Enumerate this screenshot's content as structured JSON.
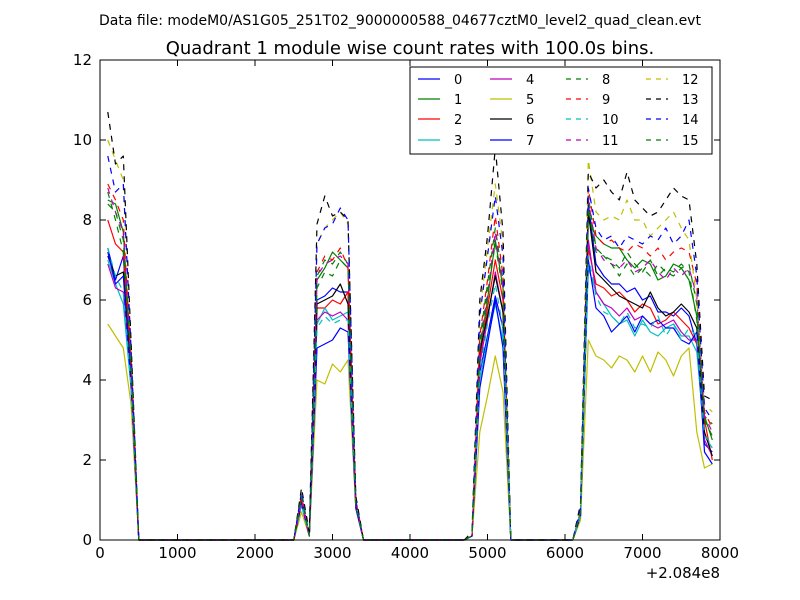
{
  "figure": {
    "suptitle": "Data file: modeM0/AS1G05_251T02_9000000588_04677cztM0_level2_quad_clean.evt"
  },
  "chart_data": {
    "type": "line",
    "title": "Quadrant 1 module wise count rates with 100.0s bins.",
    "xlabel": "",
    "ylabel": "",
    "xlim": [
      0,
      8000
    ],
    "ylim": [
      0,
      12
    ],
    "x_offset_label": "+2.084e8",
    "x_tick_labels": [
      "0",
      "1000",
      "2000",
      "3000",
      "4000",
      "5000",
      "6000",
      "7000",
      "8000"
    ],
    "y_tick_labels": [
      "0",
      "2",
      "4",
      "6",
      "8",
      "10",
      "12"
    ],
    "grid": false,
    "legend": {
      "placement": "top-right",
      "columns": 4
    },
    "x": [
      100,
      200,
      300,
      400,
      500,
      2500,
      2600,
      2700,
      2800,
      2900,
      3000,
      3100,
      3200,
      3300,
      3400,
      4700,
      4800,
      4900,
      5000,
      5100,
      5200,
      5300,
      6100,
      6200,
      6300,
      6400,
      6500,
      6600,
      6700,
      6800,
      6900,
      7000,
      7100,
      7200,
      7300,
      7400,
      7500,
      7600,
      7700,
      7800,
      7900
    ],
    "series": [
      {
        "name": "0",
        "color": "#0000ff",
        "dash": "solid",
        "values": [
          7.3,
          6.5,
          7.1,
          4.0,
          0,
          0,
          1.1,
          0.1,
          6.0,
          6.1,
          6.3,
          6.2,
          6.2,
          0.9,
          0,
          0,
          0.1,
          4.2,
          5.1,
          6.1,
          5.3,
          0,
          0,
          0.7,
          8.4,
          6.9,
          6.6,
          6.4,
          6.4,
          6.2,
          6.3,
          6.0,
          6.1,
          5.7,
          5.7,
          5.6,
          5.8,
          5.6,
          4.9,
          2.4,
          2.2
        ]
      },
      {
        "name": "1",
        "color": "#008000",
        "dash": "solid",
        "values": [
          8.5,
          8.4,
          7.7,
          4.5,
          0,
          0,
          1.0,
          0.1,
          6.5,
          6.8,
          7.2,
          7.0,
          6.8,
          0.9,
          0,
          0,
          0.1,
          4.7,
          6.0,
          7.5,
          6.3,
          0,
          0,
          0.7,
          8.0,
          7.6,
          7.4,
          7.3,
          7.3,
          7.0,
          6.8,
          7.0,
          6.9,
          6.5,
          6.6,
          6.9,
          6.8,
          6.5,
          5.6,
          3.1,
          2.5
        ]
      },
      {
        "name": "2",
        "color": "#ff0000",
        "dash": "solid",
        "values": [
          8.0,
          7.4,
          7.2,
          4.3,
          0,
          0,
          1.0,
          0.1,
          5.8,
          5.8,
          6.0,
          5.9,
          6.2,
          0.9,
          0,
          0,
          0.1,
          4.5,
          5.8,
          7.0,
          6.0,
          0,
          0,
          0.7,
          7.3,
          6.4,
          6.3,
          6.1,
          6.2,
          6.0,
          5.7,
          5.9,
          5.8,
          5.4,
          5.5,
          5.7,
          5.5,
          5.3,
          4.9,
          3.0,
          2.0
        ]
      },
      {
        "name": "3",
        "color": "#00bfbf",
        "dash": "solid",
        "values": [
          7.0,
          6.4,
          5.9,
          3.8,
          0,
          0,
          0.9,
          0.1,
          5.4,
          5.8,
          5.5,
          5.6,
          5.7,
          0.9,
          0,
          0,
          0.1,
          4.0,
          5.0,
          5.9,
          5.0,
          0,
          0,
          0.7,
          6.8,
          6.2,
          5.9,
          5.6,
          5.4,
          5.5,
          5.1,
          5.5,
          5.2,
          5.1,
          5.3,
          5.4,
          5.1,
          5.1,
          4.7,
          2.6,
          2.3
        ]
      },
      {
        "name": "4",
        "color": "#bf00bf",
        "dash": "solid",
        "values": [
          6.9,
          6.3,
          6.2,
          4.0,
          0,
          0,
          0.9,
          0.1,
          5.5,
          5.7,
          5.6,
          5.7,
          5.5,
          0.8,
          0,
          0,
          0.1,
          4.4,
          5.5,
          6.7,
          5.7,
          0,
          0,
          0.6,
          7.5,
          6.2,
          5.9,
          5.8,
          5.6,
          5.8,
          5.5,
          5.6,
          5.4,
          5.3,
          5.4,
          5.5,
          5.2,
          5.0,
          5.0,
          2.5,
          2.1
        ]
      },
      {
        "name": "5",
        "color": "#bfbf00",
        "dash": "solid",
        "values": [
          5.4,
          5.1,
          4.8,
          3.4,
          0,
          0,
          0.7,
          0.1,
          4.0,
          3.9,
          4.4,
          4.2,
          4.5,
          0.8,
          0,
          0,
          0.1,
          2.7,
          3.6,
          4.6,
          3.7,
          0,
          0,
          0.5,
          5.0,
          4.6,
          4.5,
          4.3,
          4.6,
          4.5,
          4.2,
          4.6,
          4.2,
          4.7,
          4.5,
          4.1,
          4.6,
          4.8,
          2.7,
          1.8,
          1.9
        ]
      },
      {
        "name": "6",
        "color": "#000000",
        "dash": "solid",
        "values": [
          7.1,
          6.6,
          6.7,
          4.1,
          0,
          0,
          1.0,
          0.1,
          5.9,
          6.0,
          6.1,
          6.4,
          5.9,
          0.9,
          0,
          0,
          0.1,
          4.7,
          5.6,
          6.6,
          5.7,
          0,
          0,
          0.6,
          8.2,
          6.7,
          6.5,
          6.3,
          6.1,
          6.0,
          5.9,
          5.8,
          6.2,
          5.8,
          5.6,
          5.7,
          5.9,
          5.7,
          5.3,
          2.7,
          2.1
        ]
      },
      {
        "name": "7",
        "color": "#0000ff",
        "dash": "solid",
        "values": [
          7.2,
          6.4,
          6.6,
          3.9,
          0,
          0,
          0.9,
          0.1,
          4.8,
          4.9,
          5.0,
          5.3,
          5.2,
          0.8,
          0,
          0,
          0.1,
          3.8,
          4.9,
          6.0,
          4.8,
          0,
          0,
          0.6,
          7.0,
          5.8,
          5.6,
          5.2,
          5.4,
          5.6,
          5.2,
          5.6,
          5.4,
          5.5,
          5.3,
          5.3,
          5.0,
          4.9,
          5.2,
          2.2,
          1.9
        ]
      },
      {
        "name": "8",
        "color": "#008000",
        "dash": "dashed",
        "values": [
          8.7,
          8.0,
          7.2,
          4.6,
          0,
          0,
          1.1,
          0.1,
          6.6,
          7.0,
          6.9,
          7.2,
          6.9,
          1.0,
          0,
          0,
          0.1,
          5.0,
          6.4,
          7.8,
          6.5,
          0,
          0,
          0.7,
          8.6,
          7.3,
          7.1,
          7.0,
          6.8,
          7.2,
          6.9,
          6.7,
          7.0,
          6.6,
          6.8,
          6.7,
          6.9,
          6.7,
          5.5,
          3.1,
          2.9
        ]
      },
      {
        "name": "9",
        "color": "#ff0000",
        "dash": "dashed",
        "values": [
          8.9,
          8.5,
          8.0,
          4.4,
          0,
          0,
          1.1,
          0.1,
          6.7,
          7.1,
          7.0,
          7.3,
          6.8,
          1.0,
          0,
          0,
          0.1,
          5.1,
          6.5,
          8.1,
          6.6,
          0,
          0,
          0.7,
          8.8,
          7.6,
          7.4,
          7.5,
          7.3,
          7.2,
          7.4,
          7.3,
          7.1,
          7.3,
          7.0,
          7.2,
          7.3,
          7.2,
          6.4,
          3.2,
          2.8
        ]
      },
      {
        "name": "10",
        "color": "#00bfbf",
        "dash": "dashed",
        "values": [
          7.3,
          6.6,
          6.2,
          3.9,
          0,
          0,
          0.9,
          0.1,
          5.3,
          5.6,
          5.4,
          5.5,
          5.5,
          0.9,
          0,
          0,
          0.1,
          4.2,
          5.4,
          6.4,
          5.3,
          0,
          0,
          0.6,
          7.1,
          6.1,
          5.7,
          5.6,
          5.4,
          5.7,
          5.3,
          5.4,
          5.3,
          5.6,
          5.1,
          5.4,
          5.0,
          5.3,
          5.1,
          2.6,
          2.4
        ]
      },
      {
        "name": "11",
        "color": "#bf00bf",
        "dash": "dashed",
        "values": [
          8.8,
          8.2,
          7.7,
          4.4,
          0,
          0,
          1.0,
          0.1,
          6.6,
          6.9,
          7.0,
          7.1,
          6.9,
          0.9,
          0,
          0,
          0.1,
          4.8,
          6.1,
          7.7,
          6.3,
          0,
          0,
          0.7,
          8.5,
          7.3,
          7.0,
          6.9,
          6.8,
          7.0,
          6.7,
          6.8,
          7.0,
          6.7,
          6.5,
          6.8,
          6.6,
          6.8,
          6.1,
          3.1,
          2.7
        ]
      },
      {
        "name": "12",
        "color": "#bfbf00",
        "dash": "dashed",
        "values": [
          10.0,
          9.5,
          9.0,
          4.9,
          0,
          0,
          1.2,
          0.1,
          7.4,
          7.8,
          8.0,
          8.2,
          7.9,
          1.0,
          0,
          0,
          0.1,
          5.7,
          7.3,
          8.9,
          7.4,
          0,
          0,
          0.8,
          9.5,
          8.2,
          8.0,
          8.1,
          8.0,
          8.5,
          8.0,
          8.0,
          7.6,
          7.8,
          8.0,
          8.2,
          7.8,
          7.5,
          6.0,
          3.4,
          3.2
        ]
      },
      {
        "name": "13",
        "color": "#000000",
        "dash": "dashed",
        "values": [
          10.7,
          9.4,
          9.6,
          5.0,
          0,
          0,
          1.3,
          0.2,
          7.9,
          8.6,
          8.1,
          8.2,
          8.0,
          1.1,
          0,
          0,
          0.2,
          6.0,
          7.6,
          9.8,
          7.7,
          0,
          0,
          0.9,
          9.2,
          8.8,
          9.0,
          8.7,
          8.5,
          9.2,
          8.5,
          8.3,
          8.1,
          8.2,
          8.5,
          8.8,
          8.6,
          8.5,
          6.9,
          3.6,
          3.5
        ]
      },
      {
        "name": "14",
        "color": "#0000ff",
        "dash": "dashed",
        "values": [
          9.6,
          8.7,
          8.9,
          4.8,
          0,
          0,
          1.2,
          0.1,
          7.4,
          7.8,
          7.9,
          8.3,
          8.0,
          1.0,
          0,
          0,
          0.1,
          5.6,
          7.1,
          8.6,
          7.1,
          0,
          0,
          0.8,
          8.8,
          7.8,
          7.5,
          7.6,
          7.3,
          7.6,
          7.5,
          7.4,
          7.6,
          7.5,
          7.8,
          7.4,
          7.6,
          8.0,
          6.6,
          3.3,
          3.0
        ]
      },
      {
        "name": "15",
        "color": "#008000",
        "dash": "dashed",
        "values": [
          8.4,
          8.2,
          7.5,
          4.5,
          0,
          0,
          1.1,
          0.1,
          6.3,
          6.7,
          6.6,
          7.0,
          6.8,
          0.9,
          0,
          0,
          0.1,
          4.9,
          6.2,
          7.4,
          6.2,
          0,
          0,
          0.7,
          8.3,
          7.2,
          7.1,
          6.9,
          6.6,
          6.9,
          6.6,
          6.8,
          6.6,
          6.9,
          6.7,
          6.6,
          6.8,
          6.9,
          5.9,
          3.0,
          2.6
        ]
      }
    ]
  }
}
